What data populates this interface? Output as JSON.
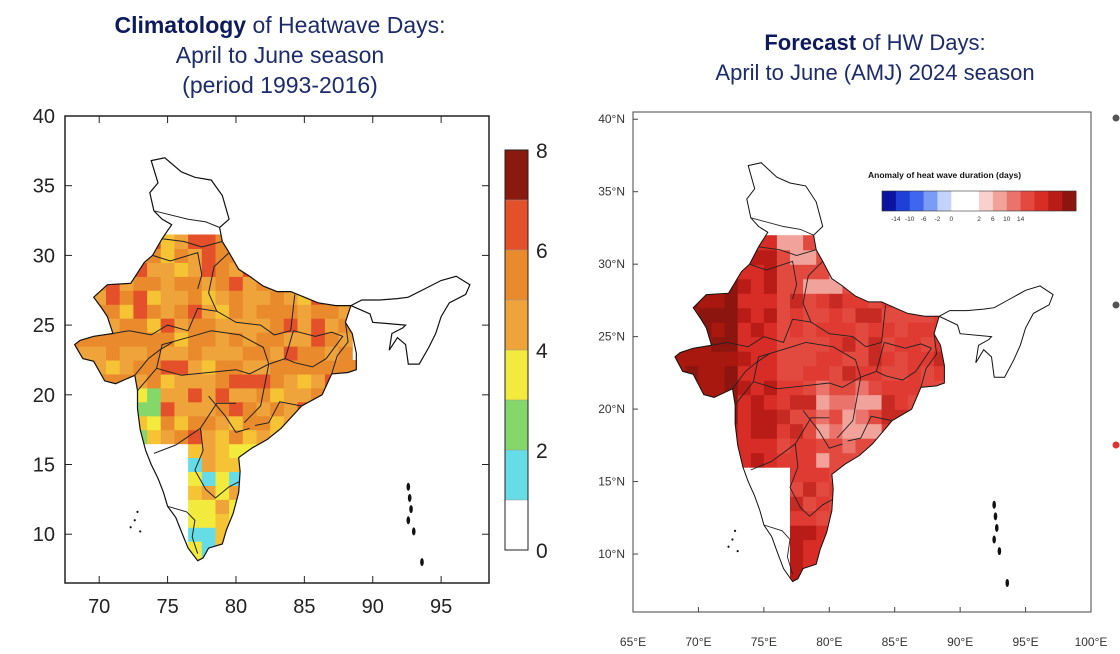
{
  "left_title": {
    "bold": "Climatology",
    "rest": " of Heatwave Days:",
    "line2": "April to June season",
    "line3": "(period 1993-2016)"
  },
  "right_title": {
    "bold": "Forecast",
    "rest": " of HW Days:",
    "line2": "April to June (AMJ) 2024 season"
  },
  "left_map": {
    "x_ticks": [
      "70",
      "75",
      "80",
      "85",
      "90",
      "95"
    ],
    "y_ticks": [
      "40",
      "35",
      "30",
      "25",
      "20",
      "15",
      "10"
    ],
    "colorbar": {
      "labels": [
        "8",
        "6",
        "4",
        "2",
        "0"
      ],
      "colors": [
        "#ffffff",
        "#d9f4f5",
        "#66dce6",
        "#84d86a",
        "#f2ea3c",
        "#f5c334",
        "#eea43a",
        "#e98a2c",
        "#e4502a",
        "#b72414",
        "#8b1a0e"
      ]
    }
  },
  "right_map": {
    "x_ticks": [
      "65°E",
      "70°E",
      "75°E",
      "80°E",
      "85°E",
      "90°E",
      "95°E",
      "100°E"
    ],
    "y_ticks": [
      "40°N",
      "35°N",
      "30°N",
      "25°N",
      "20°N",
      "15°N",
      "10°N"
    ],
    "legend": {
      "title": "Anomaly of heat wave duration (days)",
      "ticks": [
        "-14",
        "-10",
        "-6",
        "-2",
        "0",
        "2",
        "6",
        "10",
        "14"
      ],
      "colors": [
        "#0a14a0",
        "#1f3fd6",
        "#3f66ee",
        "#7b9cf5",
        "#c4d3fb",
        "#ffffff",
        "#ffffff",
        "#f8d0cc",
        "#f1a39b",
        "#ea746b",
        "#e24a40",
        "#d72d26",
        "#b91c16",
        "#8c1510"
      ]
    }
  }
}
